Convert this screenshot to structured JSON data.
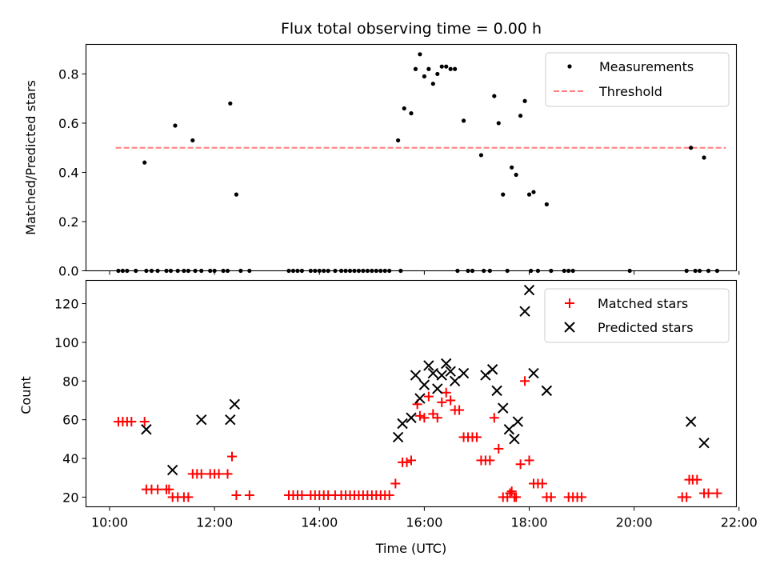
{
  "chart_data": [
    {
      "type": "scatter",
      "title": "Flux total observing time = 0.00 h",
      "xlabel": "",
      "ylabel": "Matched/Predicted stars",
      "ylim": [
        0,
        0.92
      ],
      "yticks": [
        0.0,
        0.2,
        0.4,
        0.6,
        0.8
      ],
      "ytick_labels": [
        "0.0",
        "0.2",
        "0.4",
        "0.6",
        "0.8"
      ],
      "legend": {
        "placement": "top-right",
        "entries": [
          "Measurements",
          "Threshold"
        ]
      },
      "threshold": {
        "name": "Threshold",
        "y": 0.5,
        "x_start": "10:07",
        "x_end": "21:45",
        "color": "#ff7f7f"
      },
      "series": [
        {
          "name": "Measurements",
          "color": "#000000",
          "points": [
            [
              "10:10",
              0
            ],
            [
              "10:15",
              0
            ],
            [
              "10:20",
              0
            ],
            [
              "10:30",
              0
            ],
            [
              "10:40",
              0.44
            ],
            [
              "10:42",
              0
            ],
            [
              "10:48",
              0
            ],
            [
              "10:55",
              0
            ],
            [
              "11:05",
              0
            ],
            [
              "11:10",
              0
            ],
            [
              "11:15",
              0.59
            ],
            [
              "11:18",
              0
            ],
            [
              "11:25",
              0
            ],
            [
              "11:30",
              0
            ],
            [
              "11:35",
              0.53
            ],
            [
              "11:38",
              0
            ],
            [
              "11:45",
              0
            ],
            [
              "11:55",
              0
            ],
            [
              "12:00",
              0
            ],
            [
              "12:10",
              0
            ],
            [
              "12:15",
              0
            ],
            [
              "12:18",
              0.68
            ],
            [
              "12:25",
              0.31
            ],
            [
              "12:30",
              0
            ],
            [
              "12:40",
              0
            ],
            [
              "13:25",
              0
            ],
            [
              "13:30",
              0
            ],
            [
              "13:35",
              0
            ],
            [
              "13:40",
              0
            ],
            [
              "13:50",
              0
            ],
            [
              "13:55",
              0
            ],
            [
              "14:00",
              0
            ],
            [
              "14:05",
              0
            ],
            [
              "14:10",
              0
            ],
            [
              "14:18",
              0
            ],
            [
              "14:25",
              0
            ],
            [
              "14:30",
              0
            ],
            [
              "14:35",
              0
            ],
            [
              "14:40",
              0
            ],
            [
              "14:45",
              0
            ],
            [
              "14:50",
              0
            ],
            [
              "14:55",
              0
            ],
            [
              "15:00",
              0
            ],
            [
              "15:05",
              0
            ],
            [
              "15:10",
              0
            ],
            [
              "15:15",
              0
            ],
            [
              "15:20",
              0
            ],
            [
              "15:30",
              0.53
            ],
            [
              "15:33",
              0
            ],
            [
              "15:37",
              0.66
            ],
            [
              "15:45",
              0.64
            ],
            [
              "15:50",
              0.82
            ],
            [
              "15:55",
              0.88
            ],
            [
              "16:00",
              0.79
            ],
            [
              "16:05",
              0.82
            ],
            [
              "16:10",
              0.76
            ],
            [
              "16:15",
              0.8
            ],
            [
              "16:20",
              0.83
            ],
            [
              "16:25",
              0.83
            ],
            [
              "16:30",
              0.82
            ],
            [
              "16:35",
              0.82
            ],
            [
              "16:38",
              0
            ],
            [
              "16:45",
              0.61
            ],
            [
              "16:50",
              0
            ],
            [
              "16:55",
              0
            ],
            [
              "17:05",
              0.47
            ],
            [
              "17:08",
              0
            ],
            [
              "17:15",
              0
            ],
            [
              "17:20",
              0.71
            ],
            [
              "17:25",
              0.6
            ],
            [
              "17:30",
              0.31
            ],
            [
              "17:35",
              0
            ],
            [
              "17:40",
              0.42
            ],
            [
              "17:45",
              0.39
            ],
            [
              "17:50",
              0.63
            ],
            [
              "17:55",
              0.69
            ],
            [
              "18:00",
              0.31
            ],
            [
              "18:02",
              0
            ],
            [
              "18:05",
              0.32
            ],
            [
              "18:10",
              0
            ],
            [
              "18:20",
              0.27
            ],
            [
              "18:25",
              0
            ],
            [
              "18:40",
              0
            ],
            [
              "18:45",
              0
            ],
            [
              "18:50",
              0
            ],
            [
              "19:55",
              0
            ],
            [
              "21:00",
              0
            ],
            [
              "21:05",
              0.5
            ],
            [
              "21:10",
              0
            ],
            [
              "21:15",
              0
            ],
            [
              "21:20",
              0.46
            ],
            [
              "21:25",
              0
            ],
            [
              "21:35",
              0
            ]
          ]
        }
      ]
    },
    {
      "type": "scatter",
      "title": "",
      "xlabel": "Time (UTC)",
      "ylabel": "Count",
      "ylim": [
        15,
        132
      ],
      "yticks": [
        20,
        40,
        60,
        80,
        100,
        120
      ],
      "ytick_labels": [
        "20",
        "40",
        "60",
        "80",
        "100",
        "120"
      ],
      "xlim": [
        "09:33",
        "21:57"
      ],
      "xticks": [
        "10:00",
        "12:00",
        "14:00",
        "16:00",
        "18:00",
        "20:00",
        "22:00"
      ],
      "legend": {
        "placement": "top-right",
        "entries": [
          "Matched stars",
          "Predicted stars"
        ]
      },
      "series": [
        {
          "name": "Matched stars",
          "marker": "plus",
          "color": "#ff0000",
          "points": [
            [
              "10:10",
              59
            ],
            [
              "10:15",
              59
            ],
            [
              "10:20",
              59
            ],
            [
              "10:25",
              59
            ],
            [
              "10:40",
              59
            ],
            [
              "10:42",
              24
            ],
            [
              "10:48",
              24
            ],
            [
              "10:55",
              24
            ],
            [
              "11:05",
              24
            ],
            [
              "11:08",
              24
            ],
            [
              "11:12",
              20
            ],
            [
              "11:18",
              20
            ],
            [
              "11:25",
              20
            ],
            [
              "11:30",
              20
            ],
            [
              "11:35",
              32
            ],
            [
              "11:40",
              32
            ],
            [
              "11:45",
              32
            ],
            [
              "11:55",
              32
            ],
            [
              "12:00",
              32
            ],
            [
              "12:05",
              32
            ],
            [
              "12:15",
              32
            ],
            [
              "12:20",
              41
            ],
            [
              "12:25",
              21
            ],
            [
              "12:40",
              21
            ],
            [
              "13:25",
              21
            ],
            [
              "13:30",
              21
            ],
            [
              "13:35",
              21
            ],
            [
              "13:40",
              21
            ],
            [
              "13:50",
              21
            ],
            [
              "13:55",
              21
            ],
            [
              "14:00",
              21
            ],
            [
              "14:05",
              21
            ],
            [
              "14:10",
              21
            ],
            [
              "14:18",
              21
            ],
            [
              "14:25",
              21
            ],
            [
              "14:30",
              21
            ],
            [
              "14:35",
              21
            ],
            [
              "14:40",
              21
            ],
            [
              "14:45",
              21
            ],
            [
              "14:50",
              21
            ],
            [
              "14:55",
              21
            ],
            [
              "15:00",
              21
            ],
            [
              "15:05",
              21
            ],
            [
              "15:10",
              21
            ],
            [
              "15:15",
              21
            ],
            [
              "15:20",
              21
            ],
            [
              "15:27",
              27
            ],
            [
              "15:35",
              38
            ],
            [
              "15:40",
              38
            ],
            [
              "15:45",
              39
            ],
            [
              "15:52",
              68
            ],
            [
              "15:55",
              62
            ],
            [
              "16:00",
              61
            ],
            [
              "16:05",
              72
            ],
            [
              "16:10",
              63
            ],
            [
              "16:15",
              61
            ],
            [
              "16:20",
              69
            ],
            [
              "16:25",
              74
            ],
            [
              "16:30",
              70
            ],
            [
              "16:35",
              65
            ],
            [
              "16:40",
              65
            ],
            [
              "16:45",
              51
            ],
            [
              "16:50",
              51
            ],
            [
              "16:55",
              51
            ],
            [
              "17:00",
              51
            ],
            [
              "17:05",
              39
            ],
            [
              "17:10",
              39
            ],
            [
              "17:15",
              39
            ],
            [
              "17:20",
              61
            ],
            [
              "17:25",
              45
            ],
            [
              "17:30",
              20
            ],
            [
              "17:35",
              20
            ],
            [
              "17:38",
              22
            ],
            [
              "17:40",
              23
            ],
            [
              "17:43",
              20
            ],
            [
              "17:45",
              20
            ],
            [
              "17:50",
              37
            ],
            [
              "17:55",
              80
            ],
            [
              "18:00",
              39
            ],
            [
              "18:05",
              27
            ],
            [
              "18:10",
              27
            ],
            [
              "18:15",
              27
            ],
            [
              "18:20",
              20
            ],
            [
              "18:25",
              20
            ],
            [
              "18:45",
              20
            ],
            [
              "18:50",
              20
            ],
            [
              "18:55",
              20
            ],
            [
              "19:00",
              20
            ],
            [
              "20:55",
              20
            ],
            [
              "21:00",
              20
            ],
            [
              "21:03",
              29
            ],
            [
              "21:07",
              29
            ],
            [
              "21:12",
              29
            ],
            [
              "21:20",
              22
            ],
            [
              "21:25",
              22
            ],
            [
              "21:35",
              22
            ]
          ]
        },
        {
          "name": "Predicted stars",
          "marker": "x",
          "color": "#000000",
          "points": [
            [
              "10:42",
              55
            ],
            [
              "11:12",
              34
            ],
            [
              "11:45",
              60
            ],
            [
              "12:18",
              60
            ],
            [
              "12:23",
              68
            ],
            [
              "15:30",
              51
            ],
            [
              "15:35",
              58
            ],
            [
              "15:45",
              61
            ],
            [
              "15:50",
              83
            ],
            [
              "15:55",
              71
            ],
            [
              "16:00",
              78
            ],
            [
              "16:05",
              88
            ],
            [
              "16:10",
              84
            ],
            [
              "16:15",
              76
            ],
            [
              "16:20",
              83
            ],
            [
              "16:25",
              89
            ],
            [
              "16:30",
              85
            ],
            [
              "16:35",
              80
            ],
            [
              "16:45",
              84
            ],
            [
              "17:10",
              83
            ],
            [
              "17:18",
              86
            ],
            [
              "17:23",
              75
            ],
            [
              "17:30",
              66
            ],
            [
              "17:37",
              55
            ],
            [
              "17:43",
              50
            ],
            [
              "17:47",
              59
            ],
            [
              "17:55",
              116
            ],
            [
              "18:00",
              127
            ],
            [
              "18:05",
              84
            ],
            [
              "18:20",
              75
            ],
            [
              "21:05",
              59
            ],
            [
              "21:20",
              48
            ]
          ]
        }
      ]
    }
  ]
}
